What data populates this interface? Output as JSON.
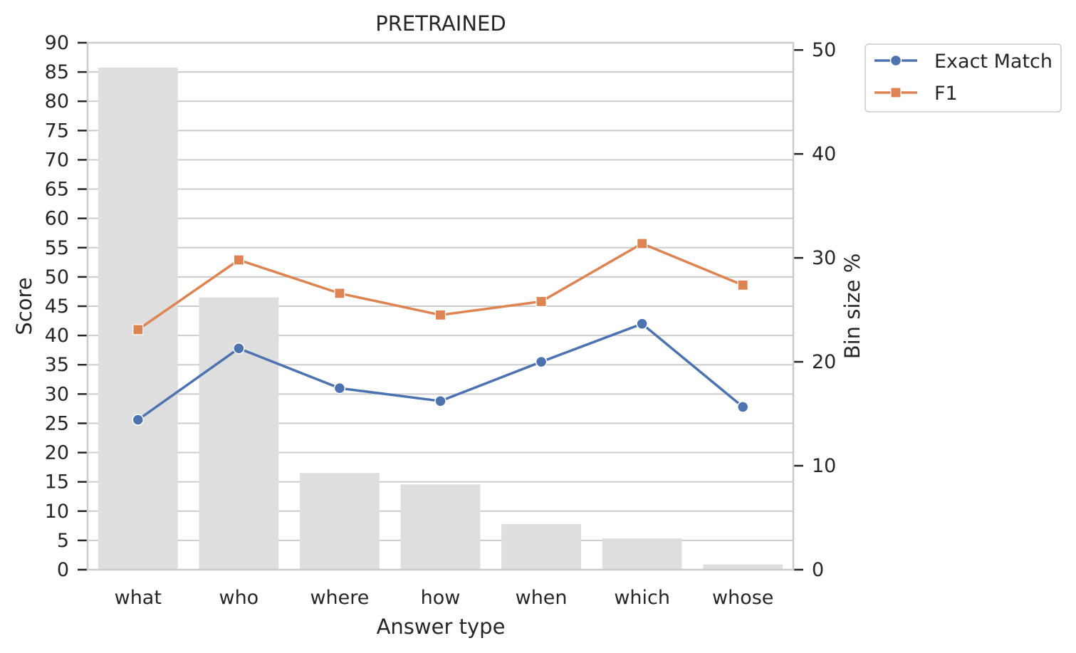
{
  "chart_data": {
    "type": "bar",
    "title": "PRETRAINED",
    "xlabel": "Answer type",
    "ylabel": "Score",
    "y2label": "Bin size %",
    "categories": [
      "what",
      "who",
      "where",
      "how",
      "when",
      "which",
      "whose"
    ],
    "ylim": [
      0,
      90
    ],
    "y_ticks": [
      "0",
      "5",
      "10",
      "15",
      "20",
      "25",
      "30",
      "35",
      "40",
      "45",
      "50",
      "55",
      "60",
      "65",
      "70",
      "75",
      "80",
      "85",
      "90"
    ],
    "y2lim": [
      0,
      50.7
    ],
    "y2_ticks": [
      "0",
      "10",
      "20",
      "30",
      "40",
      "50"
    ],
    "grid": true,
    "legend_position": "outside-top-right",
    "bars": {
      "axis": "secondary",
      "color": "#dedede",
      "values": [
        48.3,
        26.2,
        9.3,
        8.2,
        4.4,
        3.0,
        0.5
      ]
    },
    "series": [
      {
        "name": "Exact Match",
        "axis": "primary",
        "color": "#4c72b0",
        "marker": "circle",
        "values": [
          25.6,
          37.8,
          31.0,
          28.8,
          35.5,
          42.0,
          27.8
        ]
      },
      {
        "name": "F1",
        "axis": "primary",
        "color": "#dd8452",
        "marker": "square",
        "values": [
          41.0,
          52.9,
          47.2,
          43.5,
          45.8,
          55.7,
          48.6
        ]
      }
    ]
  }
}
